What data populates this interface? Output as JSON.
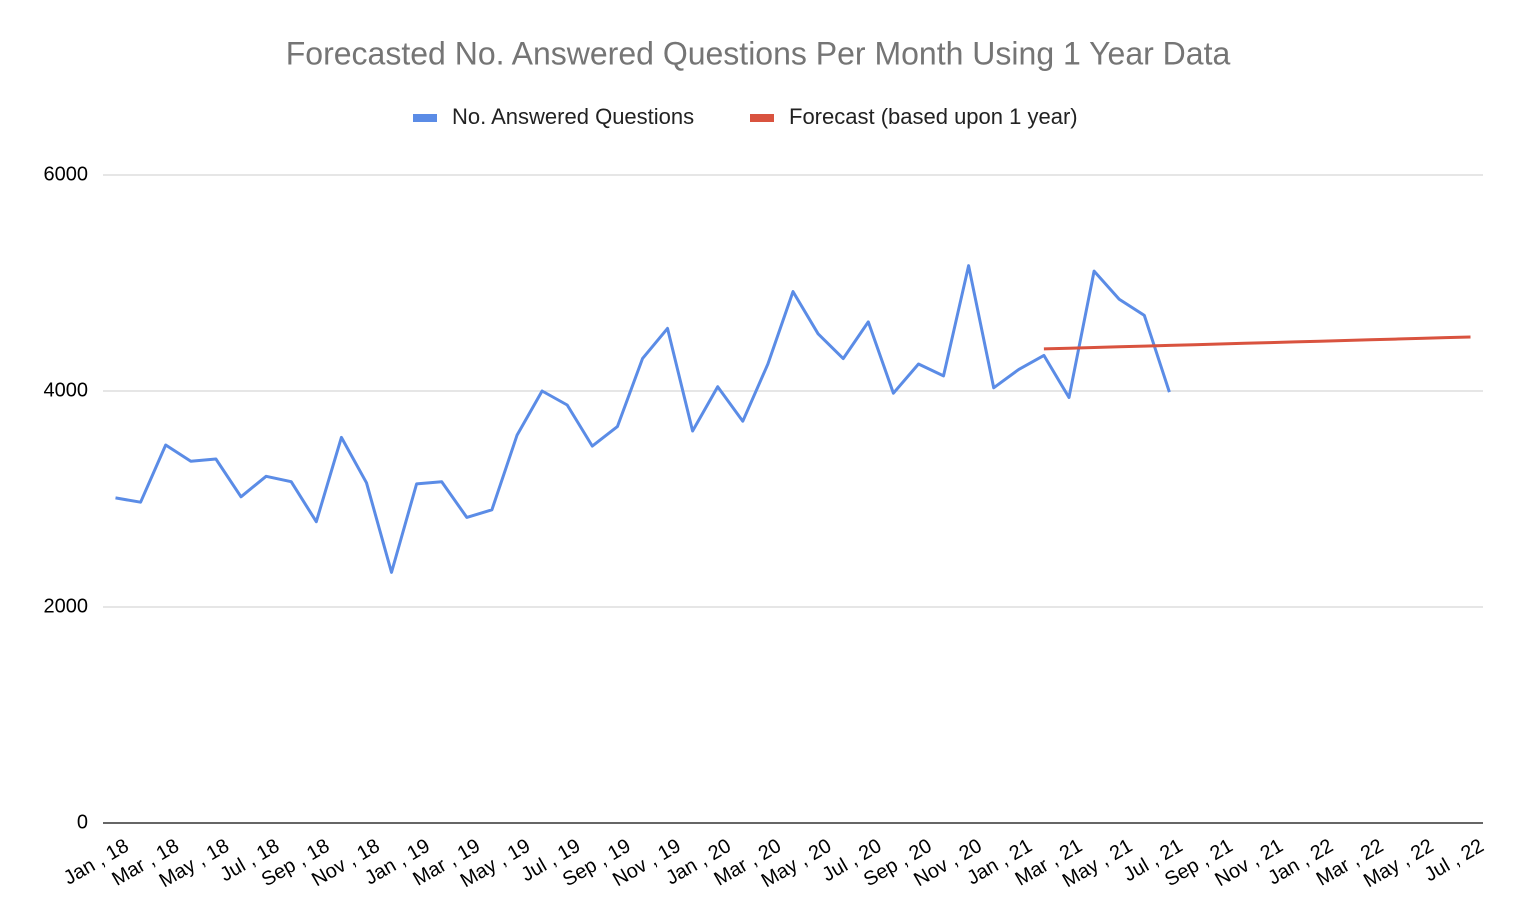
{
  "chart_data": {
    "type": "line",
    "title": "Forecasted No. Answered Questions Per Month Using 1 Year Data",
    "categories": [
      "Jan , 18",
      null,
      "Mar , 18",
      null,
      "May , 18",
      null,
      "Jul , 18",
      null,
      "Sep , 18",
      null,
      "Nov , 18",
      null,
      "Jan , 19",
      null,
      "Mar , 19",
      null,
      "May , 19",
      null,
      "Jul , 19",
      null,
      "Sep , 19",
      null,
      "Nov , 19",
      null,
      "Jan , 20",
      null,
      "Mar , 20",
      null,
      "May , 20",
      null,
      "Jul , 20",
      null,
      "Sep , 20",
      null,
      "Nov , 20",
      null,
      "Jan , 21",
      null,
      "Mar , 21",
      null,
      "May , 21",
      null,
      "Jul , 21",
      null,
      "Sep , 21",
      null,
      "Nov , 21",
      null,
      "Jan , 22",
      null,
      "Mar , 22",
      null,
      "May , 22",
      null,
      "Jul , 22"
    ],
    "series": [
      {
        "name": "No. Answered Questions",
        "color": "#5b8ce6",
        "values": [
          3010,
          2970,
          3500,
          3350,
          3370,
          3020,
          3210,
          3160,
          2790,
          3570,
          3150,
          2320,
          3140,
          3160,
          2830,
          2900,
          3590,
          4000,
          3870,
          3490,
          3670,
          4300,
          4580,
          3630,
          4040,
          3720,
          4250,
          4920,
          4530,
          4300,
          4640,
          3980,
          4250,
          4140,
          5160,
          4030,
          4200,
          4330,
          3940,
          5110,
          4850,
          4700,
          3990,
          null,
          null,
          null,
          null,
          null,
          null,
          null,
          null,
          null,
          null,
          null,
          null
        ]
      },
      {
        "name": "Forecast (based upon 1 year)",
        "color": "#d9533f",
        "values": [
          null,
          null,
          null,
          null,
          null,
          null,
          null,
          null,
          null,
          null,
          null,
          null,
          null,
          null,
          null,
          null,
          null,
          null,
          null,
          null,
          null,
          null,
          null,
          null,
          null,
          null,
          null,
          null,
          null,
          null,
          null,
          null,
          null,
          null,
          null,
          null,
          null,
          4390,
          4396,
          4403,
          4409,
          4416,
          4422,
          4429,
          4435,
          4442,
          4448,
          4455,
          4461,
          4468,
          4474,
          4481,
          4487,
          4494,
          4500
        ]
      }
    ],
    "ylim": [
      0,
      6000
    ],
    "yticks": [
      0,
      2000,
      4000,
      6000
    ],
    "grid": true,
    "legend": "top"
  }
}
